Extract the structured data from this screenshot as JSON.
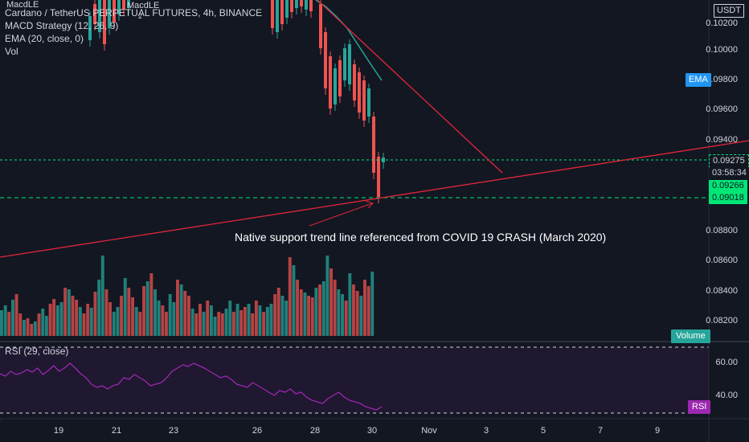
{
  "legend": {
    "symbol": "Cardano / TetherUS PERPETUAL FUTURES, 4h, BINANCE",
    "ind_macd": "MACD Strategy (12, 26, 9)",
    "ind_ema": "EMA (20, close, 0)",
    "ind_vol": "Vol",
    "top_left_marker": "MacdLE",
    "mid_marker": "MacdLE",
    "marker_small": "2"
  },
  "currency": "USDT",
  "price_axis": [
    "0.10200",
    "0.10000",
    "0.09800",
    "0.09600",
    "0.09400",
    "0.08800",
    "0.08600",
    "0.08400",
    "0.08200"
  ],
  "tags": {
    "ema": "EMA",
    "last_price": "0.09275",
    "countdown": "03:58:34",
    "price_b": "0.09266",
    "price_c": "0.09018",
    "volume": "Volume",
    "rsi": "RSI"
  },
  "annotation": "Native support trend line referenced from COVID 19 CRASH (March 2020)",
  "rsi": {
    "title": "RSI (29, close)",
    "axis": [
      "60.00",
      "40.00"
    ]
  },
  "x_axis": [
    "19",
    "21",
    "23",
    "26",
    "28",
    "30",
    "Nov",
    "3",
    "5",
    "7",
    "9"
  ],
  "colors": {
    "background": "#131722",
    "up": "#26a69a",
    "down": "#ef5350",
    "trendline": "#e0263a",
    "ema": "#26a69a",
    "rsi": "#9c27b0",
    "level_green": "#00e676"
  }
}
